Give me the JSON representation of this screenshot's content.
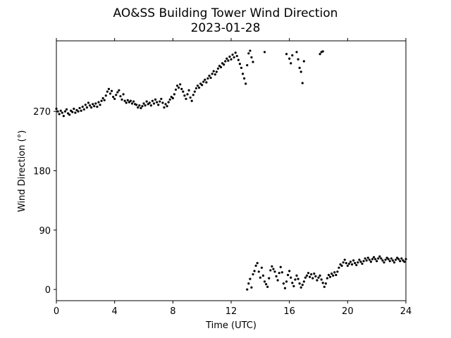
{
  "chart_data": {
    "type": "scatter",
    "title": "AO&SS Building Tower Wind Direction",
    "subtitle": "2023-01-28",
    "xlabel": "Time (UTC)",
    "ylabel": "Wind Direction (°)",
    "xlim": [
      0,
      24
    ],
    "ylim": [
      -17,
      377
    ],
    "xticks": [
      0,
      4,
      8,
      12,
      16,
      20,
      24
    ],
    "yticks": [
      0,
      90,
      180,
      270
    ],
    "marker_color": "#000000",
    "grid": false,
    "legend": "none",
    "series": [
      {
        "points": [
          [
            0.0,
            274
          ],
          [
            0.1,
            270
          ],
          [
            0.2,
            266
          ],
          [
            0.3,
            271
          ],
          [
            0.4,
            268
          ],
          [
            0.5,
            263
          ],
          [
            0.6,
            270
          ],
          [
            0.7,
            273
          ],
          [
            0.8,
            267
          ],
          [
            0.9,
            265
          ],
          [
            1.0,
            271
          ],
          [
            1.1,
            269
          ],
          [
            1.2,
            274
          ],
          [
            1.3,
            268
          ],
          [
            1.4,
            272
          ],
          [
            1.5,
            270
          ],
          [
            1.6,
            275
          ],
          [
            1.7,
            271
          ],
          [
            1.8,
            277
          ],
          [
            1.9,
            273
          ],
          [
            2.0,
            280
          ],
          [
            2.1,
            276
          ],
          [
            2.2,
            283
          ],
          [
            2.3,
            279
          ],
          [
            2.4,
            276
          ],
          [
            2.5,
            281
          ],
          [
            2.6,
            278
          ],
          [
            2.7,
            282
          ],
          [
            2.8,
            277
          ],
          [
            2.9,
            284
          ],
          [
            3.0,
            280
          ],
          [
            3.1,
            286
          ],
          [
            3.2,
            290
          ],
          [
            3.3,
            287
          ],
          [
            3.4,
            294
          ],
          [
            3.5,
            300
          ],
          [
            3.6,
            304
          ],
          [
            3.7,
            297
          ],
          [
            3.8,
            301
          ],
          [
            3.9,
            292
          ],
          [
            4.0,
            289
          ],
          [
            4.1,
            295
          ],
          [
            4.2,
            299
          ],
          [
            4.3,
            302
          ],
          [
            4.4,
            293
          ],
          [
            4.5,
            288
          ],
          [
            4.6,
            296
          ],
          [
            4.7,
            286
          ],
          [
            4.8,
            283
          ],
          [
            4.9,
            287
          ],
          [
            5.0,
            284
          ],
          [
            5.1,
            286
          ],
          [
            5.2,
            282
          ],
          [
            5.3,
            285
          ],
          [
            5.4,
            281
          ],
          [
            5.5,
            280
          ],
          [
            5.6,
            276
          ],
          [
            5.7,
            279
          ],
          [
            5.8,
            275
          ],
          [
            5.9,
            278
          ],
          [
            6.0,
            282
          ],
          [
            6.1,
            279
          ],
          [
            6.2,
            285
          ],
          [
            6.3,
            281
          ],
          [
            6.4,
            283
          ],
          [
            6.5,
            279
          ],
          [
            6.6,
            286
          ],
          [
            6.7,
            282
          ],
          [
            6.8,
            288
          ],
          [
            6.9,
            284
          ],
          [
            7.0,
            280
          ],
          [
            7.1,
            285
          ],
          [
            7.2,
            289
          ],
          [
            7.3,
            283
          ],
          [
            7.4,
            276
          ],
          [
            7.5,
            281
          ],
          [
            7.6,
            278
          ],
          [
            7.7,
            284
          ],
          [
            7.8,
            288
          ],
          [
            7.9,
            292
          ],
          [
            8.0,
            290
          ],
          [
            8.1,
            296
          ],
          [
            8.2,
            303
          ],
          [
            8.3,
            309
          ],
          [
            8.4,
            306
          ],
          [
            8.5,
            311
          ],
          [
            8.6,
            304
          ],
          [
            8.7,
            300
          ],
          [
            8.8,
            294
          ],
          [
            8.9,
            289
          ],
          [
            9.0,
            296
          ],
          [
            9.1,
            302
          ],
          [
            9.2,
            291
          ],
          [
            9.3,
            286
          ],
          [
            9.4,
            295
          ],
          [
            9.5,
            300
          ],
          [
            9.6,
            305
          ],
          [
            9.7,
            309
          ],
          [
            9.8,
            306
          ],
          [
            9.9,
            312
          ],
          [
            10.0,
            310
          ],
          [
            10.1,
            315
          ],
          [
            10.2,
            318
          ],
          [
            10.3,
            314
          ],
          [
            10.4,
            320
          ],
          [
            10.5,
            324
          ],
          [
            10.6,
            321
          ],
          [
            10.7,
            327
          ],
          [
            10.8,
            331
          ],
          [
            10.9,
            326
          ],
          [
            11.0,
            330
          ],
          [
            11.1,
            335
          ],
          [
            11.2,
            339
          ],
          [
            11.3,
            337
          ],
          [
            11.4,
            343
          ],
          [
            11.5,
            341
          ],
          [
            11.6,
            346
          ],
          [
            11.7,
            350
          ],
          [
            11.8,
            347
          ],
          [
            11.9,
            353
          ],
          [
            12.0,
            349
          ],
          [
            12.1,
            356
          ],
          [
            12.2,
            352
          ],
          [
            12.3,
            359
          ],
          [
            12.4,
            354
          ],
          [
            12.5,
            348
          ],
          [
            12.6,
            342
          ],
          [
            12.7,
            336
          ],
          [
            12.8,
            327
          ],
          [
            12.9,
            320
          ],
          [
            13.0,
            312
          ],
          [
            13.1,
            340
          ],
          [
            13.2,
            358
          ],
          [
            13.3,
            362
          ],
          [
            13.4,
            352
          ],
          [
            13.5,
            345
          ],
          [
            14.3,
            360
          ],
          [
            15.8,
            357
          ],
          [
            16.0,
            350
          ],
          [
            16.1,
            343
          ],
          [
            16.2,
            355
          ],
          [
            16.5,
            360
          ],
          [
            16.6,
            349
          ],
          [
            16.7,
            336
          ],
          [
            16.8,
            330
          ],
          [
            16.9,
            313
          ],
          [
            17.0,
            346
          ],
          [
            18.1,
            357
          ],
          [
            18.2,
            360
          ],
          [
            18.3,
            361
          ],
          [
            13.1,
            0
          ],
          [
            13.2,
            9
          ],
          [
            13.3,
            16
          ],
          [
            13.4,
            3
          ],
          [
            13.5,
            23
          ],
          [
            13.6,
            28
          ],
          [
            13.7,
            36
          ],
          [
            13.8,
            40
          ],
          [
            13.9,
            27
          ],
          [
            14.0,
            18
          ],
          [
            14.1,
            33
          ],
          [
            14.2,
            21
          ],
          [
            14.3,
            12
          ],
          [
            14.4,
            8
          ],
          [
            14.5,
            4
          ],
          [
            14.6,
            17
          ],
          [
            14.7,
            29
          ],
          [
            14.8,
            35
          ],
          [
            14.9,
            31
          ],
          [
            15.0,
            27
          ],
          [
            15.1,
            20
          ],
          [
            15.2,
            14
          ],
          [
            15.3,
            25
          ],
          [
            15.4,
            34
          ],
          [
            15.5,
            26
          ],
          [
            15.6,
            9
          ],
          [
            15.7,
            2
          ],
          [
            15.8,
            12
          ],
          [
            15.9,
            22
          ],
          [
            16.0,
            28
          ],
          [
            16.1,
            18
          ],
          [
            16.2,
            10
          ],
          [
            16.3,
            5
          ],
          [
            16.4,
            15
          ],
          [
            16.5,
            21
          ],
          [
            16.6,
            16
          ],
          [
            16.7,
            9
          ],
          [
            16.8,
            3
          ],
          [
            16.9,
            7
          ],
          [
            17.0,
            12
          ],
          [
            17.1,
            18
          ],
          [
            17.2,
            21
          ],
          [
            17.3,
            25
          ],
          [
            17.4,
            19
          ],
          [
            17.5,
            23
          ],
          [
            17.6,
            17
          ],
          [
            17.7,
            24
          ],
          [
            17.8,
            20
          ],
          [
            17.9,
            14
          ],
          [
            18.0,
            18
          ],
          [
            18.1,
            21
          ],
          [
            18.2,
            15
          ],
          [
            18.3,
            10
          ],
          [
            18.4,
            4
          ],
          [
            18.5,
            9
          ],
          [
            18.6,
            17
          ],
          [
            18.7,
            22
          ],
          [
            18.8,
            19
          ],
          [
            18.9,
            24
          ],
          [
            19.0,
            21
          ],
          [
            19.1,
            26
          ],
          [
            19.2,
            22
          ],
          [
            19.3,
            27
          ],
          [
            19.4,
            33
          ],
          [
            19.5,
            38
          ],
          [
            19.6,
            36
          ],
          [
            19.7,
            41
          ],
          [
            19.8,
            45
          ],
          [
            19.9,
            40
          ],
          [
            20.0,
            36
          ],
          [
            20.1,
            39
          ],
          [
            20.2,
            42
          ],
          [
            20.3,
            38
          ],
          [
            20.4,
            44
          ],
          [
            20.5,
            40
          ],
          [
            20.6,
            37
          ],
          [
            20.7,
            41
          ],
          [
            20.8,
            45
          ],
          [
            20.9,
            42
          ],
          [
            21.0,
            39
          ],
          [
            21.1,
            43
          ],
          [
            21.2,
            47
          ],
          [
            21.3,
            44
          ],
          [
            21.4,
            48
          ],
          [
            21.5,
            45
          ],
          [
            21.6,
            42
          ],
          [
            21.7,
            46
          ],
          [
            21.8,
            49
          ],
          [
            21.9,
            46
          ],
          [
            22.0,
            43
          ],
          [
            22.1,
            47
          ],
          [
            22.2,
            50
          ],
          [
            22.3,
            47
          ],
          [
            22.4,
            44
          ],
          [
            22.5,
            41
          ],
          [
            22.6,
            45
          ],
          [
            22.7,
            48
          ],
          [
            22.8,
            46
          ],
          [
            22.9,
            43
          ],
          [
            23.0,
            47
          ],
          [
            23.1,
            44
          ],
          [
            23.2,
            41
          ],
          [
            23.3,
            45
          ],
          [
            23.4,
            48
          ],
          [
            23.5,
            46
          ],
          [
            23.6,
            43
          ],
          [
            23.7,
            47
          ],
          [
            23.8,
            44
          ],
          [
            23.9,
            42
          ],
          [
            24.0,
            46
          ]
        ]
      }
    ]
  }
}
